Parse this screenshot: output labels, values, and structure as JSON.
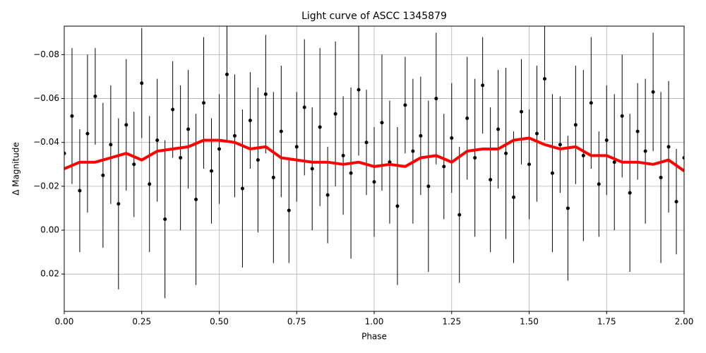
{
  "chart_data": {
    "type": "errorbar-scatter",
    "title": "Light curve of ASCC 1345879",
    "x_label": "Phase",
    "y_label": "Δ Magnitude",
    "xlim": [
      0,
      2
    ],
    "ylim": [
      -0.093,
      0.037
    ],
    "y_inverted": true,
    "grid": true,
    "xticks": [
      {
        "value": 0,
        "label": "0.00"
      },
      0.25,
      {
        "value": 0.5,
        "label": "0.50"
      },
      0.75,
      {
        "value": 1,
        "label": "1.00"
      },
      1.25,
      {
        "value": 1.5,
        "label": "1.50"
      },
      1.75,
      {
        "value": 2,
        "label": "2.00"
      }
    ],
    "yticks": [
      {
        "value": -0.08,
        "label": "−0.08"
      },
      {
        "value": -0.06,
        "label": "−0.06"
      },
      {
        "value": -0.04,
        "label": "−0.04"
      },
      {
        "value": -0.02,
        "label": "−0.02"
      },
      {
        "value": 0,
        "label": "0.00"
      },
      0.02
    ],
    "points": {
      "color": "#000000",
      "x": [
        0,
        0.025,
        0.05,
        0.075,
        0.1,
        0.125,
        0.15,
        0.175,
        0.2,
        0.225,
        0.25,
        0.275,
        0.3,
        0.325,
        0.35,
        0.375,
        0.4,
        0.425,
        0.45,
        0.475,
        0.5,
        0.525,
        0.55,
        0.575,
        0.6,
        0.625,
        0.65,
        0.675,
        0.7,
        0.725,
        0.75,
        0.775,
        0.8,
        0.825,
        0.85,
        0.875,
        0.9,
        0.925,
        0.95,
        0.975,
        1,
        1.025,
        1.05,
        1.075,
        1.1,
        1.125,
        1.15,
        1.175,
        1.2,
        1.225,
        1.25,
        1.275,
        1.3,
        1.325,
        1.35,
        1.375,
        1.4,
        1.425,
        1.45,
        1.475,
        1.5,
        1.525,
        1.55,
        1.575,
        1.6,
        1.625,
        1.65,
        1.675,
        1.7,
        1.725,
        1.75,
        1.775,
        1.8,
        1.825,
        1.85,
        1.875,
        1.9,
        1.925,
        1.95,
        1.975,
        2
      ],
      "y": [
        -0.035,
        -0.052,
        -0.018,
        -0.044,
        -0.061,
        -0.025,
        -0.039,
        -0.012,
        -0.048,
        -0.03,
        -0.067,
        -0.021,
        -0.041,
        -0.005,
        -0.055,
        -0.033,
        -0.046,
        -0.014,
        -0.058,
        -0.027,
        -0.037,
        -0.071,
        -0.043,
        -0.019,
        -0.05,
        -0.032,
        -0.062,
        -0.024,
        -0.045,
        -0.009,
        -0.038,
        -0.056,
        -0.028,
        -0.047,
        -0.016,
        -0.053,
        -0.034,
        -0.026,
        -0.064,
        -0.04,
        -0.022,
        -0.049,
        -0.031,
        -0.011,
        -0.057,
        -0.036,
        -0.043,
        -0.02,
        -0.06,
        -0.029,
        -0.042,
        -0.007,
        -0.051,
        -0.033,
        -0.066,
        -0.023,
        -0.046,
        -0.035,
        -0.015,
        -0.054,
        -0.03,
        -0.044,
        -0.069,
        -0.026,
        -0.039,
        -0.01,
        -0.048,
        -0.034,
        -0.058,
        -0.021,
        -0.041,
        -0.031,
        -0.052,
        -0.017,
        -0.045,
        -0.036,
        -0.063,
        -0.024,
        -0.038,
        -0.013,
        -0.033
      ],
      "yerr": [
        0.025,
        0.031,
        0.028,
        0.036,
        0.022,
        0.033,
        0.027,
        0.039,
        0.03,
        0.024,
        0.025,
        0.031,
        0.028,
        0.036,
        0.022,
        0.033,
        0.027,
        0.039,
        0.03,
        0.024,
        0.025,
        0.031,
        0.028,
        0.036,
        0.022,
        0.033,
        0.027,
        0.039,
        0.03,
        0.024,
        0.025,
        0.031,
        0.028,
        0.036,
        0.022,
        0.033,
        0.027,
        0.039,
        0.03,
        0.024,
        0.025,
        0.031,
        0.028,
        0.036,
        0.022,
        0.033,
        0.027,
        0.039,
        0.03,
        0.024,
        0.025,
        0.031,
        0.028,
        0.036,
        0.022,
        0.033,
        0.027,
        0.039,
        0.03,
        0.024,
        0.025,
        0.031,
        0.028,
        0.036,
        0.022,
        0.033,
        0.027,
        0.039,
        0.03,
        0.024,
        0.025,
        0.031,
        0.028,
        0.036,
        0.022,
        0.033,
        0.027,
        0.039,
        0.03,
        0.024,
        0.029
      ]
    },
    "trend": {
      "color": "#ff0000",
      "x": [
        0,
        0.05,
        0.1,
        0.15,
        0.2,
        0.25,
        0.3,
        0.35,
        0.4,
        0.45,
        0.5,
        0.55,
        0.6,
        0.65,
        0.7,
        0.75,
        0.8,
        0.85,
        0.9,
        0.95,
        1,
        1.05,
        1.1,
        1.15,
        1.2,
        1.25,
        1.3,
        1.35,
        1.4,
        1.45,
        1.5,
        1.55,
        1.6,
        1.65,
        1.7,
        1.75,
        1.8,
        1.85,
        1.9,
        1.95,
        2
      ],
      "y": [
        -0.028,
        -0.031,
        -0.031,
        -0.033,
        -0.035,
        -0.032,
        -0.036,
        -0.037,
        -0.038,
        -0.041,
        -0.041,
        -0.04,
        -0.037,
        -0.038,
        -0.033,
        -0.032,
        -0.031,
        -0.031,
        -0.03,
        -0.031,
        -0.029,
        -0.03,
        -0.029,
        -0.033,
        -0.034,
        -0.031,
        -0.036,
        -0.037,
        -0.037,
        -0.041,
        -0.042,
        -0.039,
        -0.037,
        -0.038,
        -0.034,
        -0.034,
        -0.031,
        -0.031,
        -0.03,
        -0.032,
        -0.027
      ]
    }
  }
}
